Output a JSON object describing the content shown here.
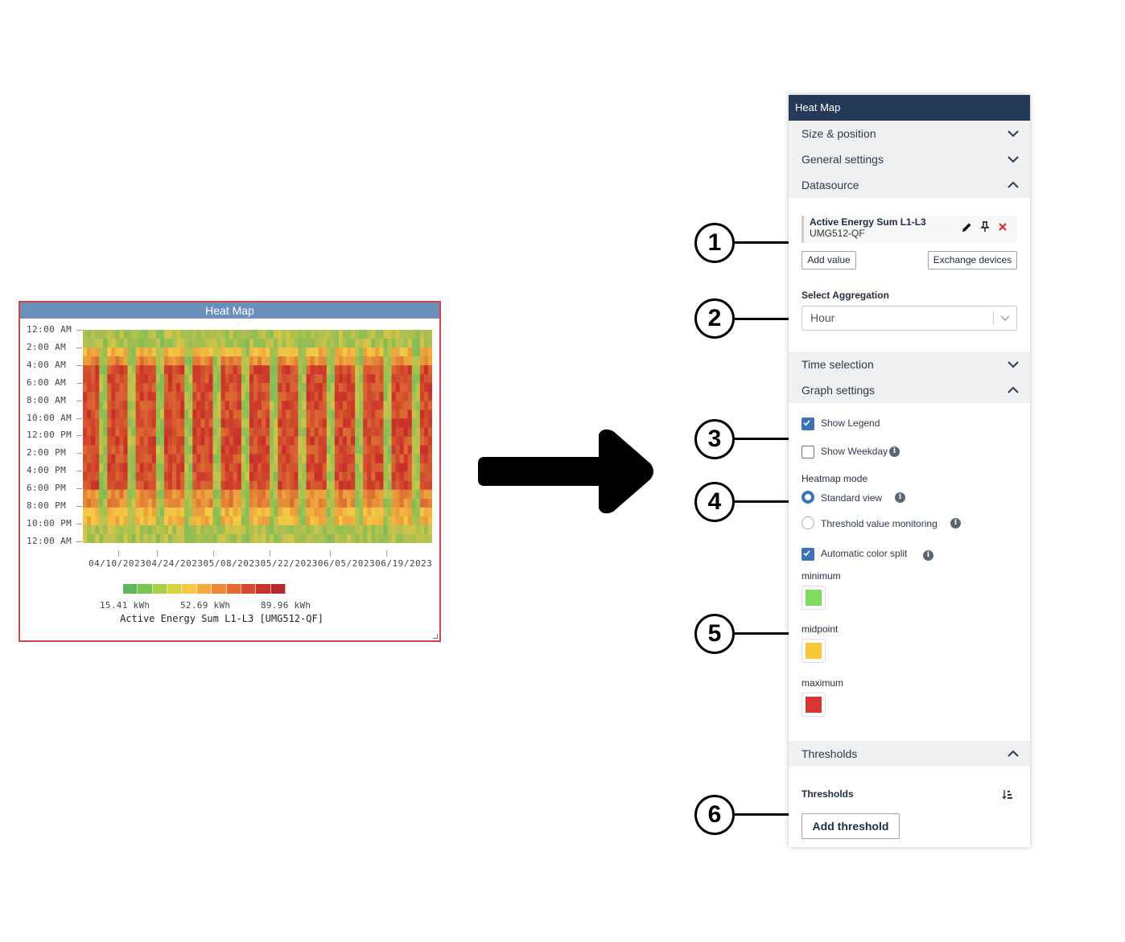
{
  "widget": {
    "title": "Heat Map",
    "y_labels": [
      "12:00 AM",
      "2:00 AM",
      "4:00 AM",
      "6:00 AM",
      "8:00 AM",
      "10:00 AM",
      "12:00 PM",
      "2:00 PM",
      "4:00 PM",
      "6:00 PM",
      "8:00 PM",
      "10:00 PM",
      "12:00 AM"
    ],
    "x_labels": "04/10/202304/24/202305/08/202305/22/202306/05/202306/19/2023",
    "legend_min": "15.41 kWh",
    "legend_mid": "52.69 kWh",
    "legend_max": "89.96 kWh",
    "legend_title": "Active Energy Sum L1-L3 [UMG512-QF]",
    "legend_colors": [
      "#5cb85c",
      "#7cc54e",
      "#a8cf45",
      "#d6d23f",
      "#f7c843",
      "#f4aa3d",
      "#ee8a37",
      "#e56a32",
      "#d9472f",
      "#c8322d",
      "#b42b2b"
    ]
  },
  "chart_data": {
    "type": "heatmap",
    "xlabel": "",
    "ylabel": "",
    "x_tick_labels": [
      "04/10/2023",
      "04/24/2023",
      "05/08/2023",
      "05/22/2023",
      "06/05/2023",
      "06/19/2023"
    ],
    "y_tick_labels": [
      "12:00 AM",
      "2:00 AM",
      "4:00 AM",
      "6:00 AM",
      "8:00 AM",
      "10:00 AM",
      "12:00 PM",
      "2:00 PM",
      "4:00 PM",
      "6:00 PM",
      "8:00 PM",
      "10:00 PM",
      "12:00 AM"
    ],
    "value_range": [
      15.41,
      89.96
    ],
    "unit": "kWh",
    "series_name": "Active Energy Sum L1-L3 [UMG512-QF]",
    "color_scale": [
      "#5cb85c",
      "#f7c843",
      "#d9372f"
    ]
  },
  "panel": {
    "title": "Heat Map",
    "sections": {
      "size_position": "Size & position",
      "general": "General settings",
      "datasource": "Datasource",
      "time": "Time selection",
      "graph": "Graph settings",
      "thresholds": "Thresholds"
    },
    "datasource": {
      "name": "Active Energy Sum L1-L3",
      "device": "UMG512-QF",
      "add_value": "Add value",
      "exchange": "Exchange devices"
    },
    "aggregation": {
      "label": "Select Aggregation",
      "value": "Hour"
    },
    "graph": {
      "show_legend": "Show Legend",
      "show_weekday": "Show Weekday",
      "heatmap_mode": "Heatmap mode",
      "standard_view": "Standard view",
      "threshold_monitoring": "Threshold value monitoring",
      "auto_color_split": "Automatic color split",
      "minimum": "minimum",
      "midpoint": "midpoint",
      "maximum": "maximum",
      "min_color": "#7ddc5b",
      "mid_color": "#f7c737",
      "max_color": "#d93434"
    },
    "thresholds": {
      "label": "Thresholds",
      "add": "Add threshold"
    }
  },
  "callouts": [
    "1",
    "2",
    "3",
    "4",
    "5",
    "6"
  ]
}
